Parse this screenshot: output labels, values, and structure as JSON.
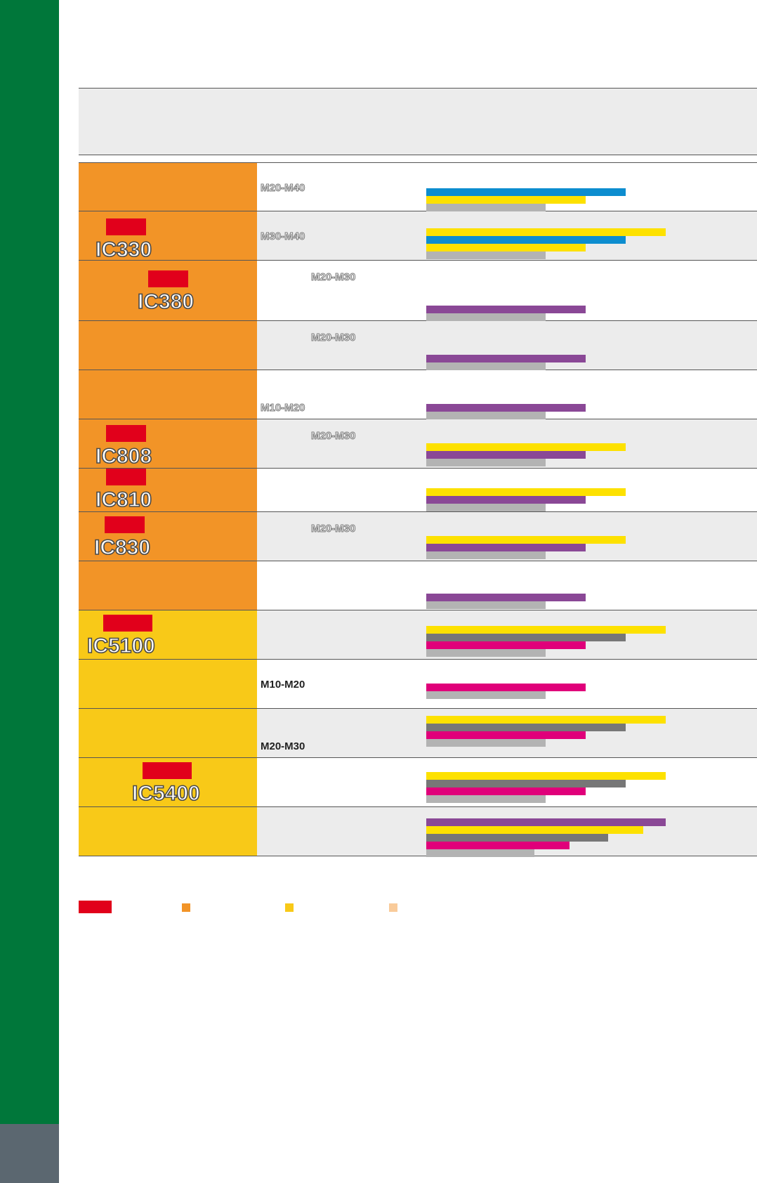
{
  "colors": {
    "sidebar_green": "#00773a",
    "sidebar_foot": "#5b6770",
    "orange_group": "#f29427",
    "yellow_group": "#f8c918",
    "new_badge_red": "#e1001b",
    "legend_light_orange": "#f9cb9a",
    "bar_blue": "#0d8dcf",
    "bar_yellow": "#fde100",
    "bar_gray": "#b3b3b3",
    "bar_dark_gray": "#777777",
    "bar_purple": "#8a4896",
    "bar_magenta": "#e0007a",
    "row_shade": "#ececec"
  },
  "rows": [
    {
      "grade": "",
      "group": "orange",
      "badge": false,
      "range": "M20-M40",
      "range_style": "outlined",
      "range_pos": "left-middle",
      "shade": false,
      "bars": [
        {
          "color": "blue",
          "value": 0.625
        },
        {
          "color": "yellow",
          "value": 0.5
        },
        {
          "color": "gray",
          "value": 0.375
        }
      ]
    },
    {
      "grade": "IC330",
      "group": "orange",
      "badge": true,
      "range": "M30-M40",
      "range_style": "outlined",
      "range_pos": "left-top",
      "shade": true,
      "bars": [
        {
          "color": "yellow",
          "value": 0.75
        },
        {
          "color": "blue",
          "value": 0.625
        },
        {
          "color": "yellow",
          "value": 0.5
        },
        {
          "color": "gray",
          "value": 0.375
        }
      ]
    },
    {
      "grade": "IC380",
      "group": "orange",
      "badge": true,
      "range": "M20-M30",
      "range_style": "outlined",
      "range_pos": "indent-top",
      "shade": false,
      "bars": [
        {
          "color": "purple",
          "value": 0.5
        },
        {
          "color": "gray",
          "value": 0.375
        }
      ]
    },
    {
      "grade": "",
      "group": "orange",
      "badge": false,
      "range": "M20-M30",
      "range_style": "outlined",
      "range_pos": "indent-top",
      "shade": true,
      "bars": [
        {
          "color": "purple",
          "value": 0.5
        },
        {
          "color": "gray",
          "value": 0.375
        }
      ]
    },
    {
      "grade": "",
      "group": "orange",
      "badge": false,
      "range": "M10-M20",
      "range_style": "outlined",
      "range_pos": "left-bottom",
      "shade": false,
      "bars": [
        {
          "color": "purple",
          "value": 0.5
        },
        {
          "color": "gray",
          "value": 0.375
        }
      ]
    },
    {
      "grade": "IC808",
      "group": "orange",
      "badge": true,
      "range": "M20-M30",
      "range_style": "outlined",
      "range_pos": "indent-top",
      "shade": true,
      "bars": [
        {
          "color": "yellow",
          "value": 0.625
        },
        {
          "color": "purple",
          "value": 0.5
        },
        {
          "color": "gray",
          "value": 0.375
        }
      ]
    },
    {
      "grade": "IC810",
      "group": "orange",
      "badge": true,
      "range": "",
      "range_style": "outlined",
      "range_pos": "none",
      "shade": false,
      "bars": [
        {
          "color": "yellow",
          "value": 0.625
        },
        {
          "color": "purple",
          "value": 0.5
        },
        {
          "color": "gray",
          "value": 0.375
        }
      ]
    },
    {
      "grade": "IC830",
      "group": "orange",
      "badge": true,
      "range": "M20-M30",
      "range_style": "outlined",
      "range_pos": "indent-top",
      "shade": true,
      "bars": [
        {
          "color": "yellow",
          "value": 0.625
        },
        {
          "color": "purple",
          "value": 0.5
        },
        {
          "color": "gray",
          "value": 0.375
        }
      ]
    },
    {
      "grade": "",
      "group": "orange",
      "badge": false,
      "range": "",
      "range_style": "outlined",
      "range_pos": "none",
      "shade": false,
      "bars": [
        {
          "color": "purple",
          "value": 0.5
        },
        {
          "color": "gray",
          "value": 0.375
        }
      ]
    },
    {
      "grade": "IC5100",
      "group": "yellow",
      "badge": true,
      "range": "",
      "range_style": "outlined",
      "range_pos": "none",
      "shade": true,
      "bars": [
        {
          "color": "yellow",
          "value": 0.75
        },
        {
          "color": "dark_gray",
          "value": 0.625
        },
        {
          "color": "magenta",
          "value": 0.5
        },
        {
          "color": "gray",
          "value": 0.375
        }
      ]
    },
    {
      "grade": "",
      "group": "yellow",
      "badge": false,
      "range": "M10-M20",
      "range_style": "dark",
      "range_pos": "left-middle",
      "shade": false,
      "bars": [
        {
          "color": "magenta",
          "value": 0.5
        },
        {
          "color": "gray",
          "value": 0.375
        }
      ]
    },
    {
      "grade": "",
      "group": "yellow",
      "badge": false,
      "range": "M20-M30",
      "range_style": "dark",
      "range_pos": "left-bottom",
      "shade": true,
      "bars": [
        {
          "color": "yellow",
          "value": 0.75
        },
        {
          "color": "dark_gray",
          "value": 0.625
        },
        {
          "color": "magenta",
          "value": 0.5
        },
        {
          "color": "gray",
          "value": 0.375
        }
      ]
    },
    {
      "grade": "IC5400",
      "group": "yellow",
      "badge": true,
      "range": "",
      "range_style": "outlined",
      "range_pos": "none",
      "shade": false,
      "bars": [
        {
          "color": "yellow",
          "value": 0.75
        },
        {
          "color": "dark_gray",
          "value": 0.625
        },
        {
          "color": "magenta",
          "value": 0.5
        },
        {
          "color": "gray",
          "value": 0.375
        }
      ]
    },
    {
      "grade": "",
      "group": "yellow",
      "badge": false,
      "range": "",
      "range_style": "outlined",
      "range_pos": "none",
      "shade": true,
      "bars": [
        {
          "color": "purple",
          "value": 0.75
        },
        {
          "color": "yellow",
          "value": 0.68
        },
        {
          "color": "dark_gray",
          "value": 0.57
        },
        {
          "color": "magenta",
          "value": 0.45
        },
        {
          "color": "gray",
          "value": 0.34
        }
      ]
    }
  ],
  "legend": [
    {
      "color": "new_badge_red",
      "kind": "badge"
    },
    {
      "color": "orange_group",
      "kind": "square"
    },
    {
      "color": "yellow_group",
      "kind": "square"
    },
    {
      "color": "legend_light_orange",
      "kind": "square"
    }
  ]
}
